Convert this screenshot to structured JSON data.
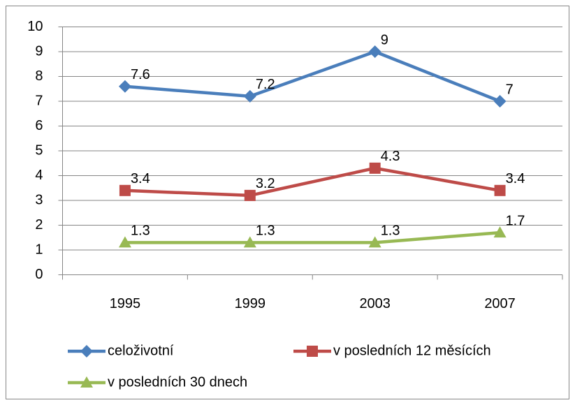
{
  "chart_data": {
    "type": "line",
    "categories": [
      "1995",
      "1999",
      "2003",
      "2007"
    ],
    "series": [
      {
        "name": "celoživotní",
        "color": "#4a7ebb",
        "marker": "diamond",
        "values": [
          7.6,
          7.2,
          9,
          7
        ]
      },
      {
        "name": "v posledních 12 měsících",
        "color": "#be4b48",
        "marker": "square",
        "values": [
          3.4,
          3.2,
          4.3,
          3.4
        ]
      },
      {
        "name": "v posledních 30 dnech",
        "color": "#98b954",
        "marker": "triangle",
        "values": [
          1.3,
          1.3,
          1.3,
          1.7
        ]
      }
    ],
    "ylim": [
      0,
      10
    ],
    "yticks": [
      0,
      1,
      2,
      3,
      4,
      5,
      6,
      7,
      8,
      9,
      10
    ],
    "grid": true,
    "legend": "bottom"
  }
}
